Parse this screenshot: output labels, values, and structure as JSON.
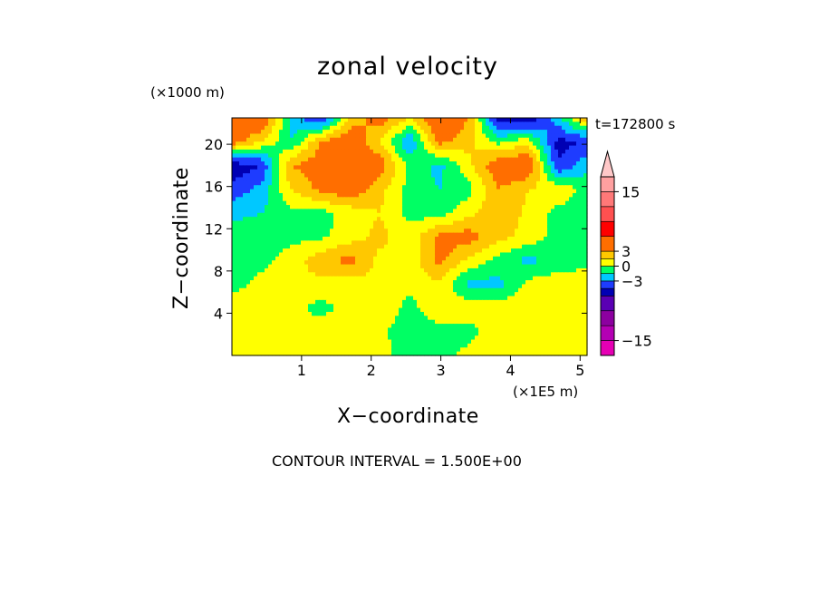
{
  "chart_data": {
    "type": "heatmap",
    "title": "zonal velocity",
    "xlabel": "X−coordinate",
    "ylabel": "Z−coordinate",
    "x_unit_label": "(×1E5 m)",
    "y_unit_label": "(×1000 m)",
    "time_label": "t=172800 s",
    "footer": "CONTOUR INTERVAL = 1.500E+00",
    "xlim": [
      0,
      5.1
    ],
    "ylim": [
      0,
      22.5
    ],
    "x_ticks": [
      {
        "value": 1,
        "label": "1"
      },
      {
        "value": 2,
        "label": "2"
      },
      {
        "value": 3,
        "label": "3"
      },
      {
        "value": 4,
        "label": "4"
      },
      {
        "value": 5,
        "label": "5"
      }
    ],
    "y_ticks": [
      {
        "value": 4,
        "label": "4"
      },
      {
        "value": 8,
        "label": "8"
      },
      {
        "value": 12,
        "label": "12"
      },
      {
        "value": 16,
        "label": "16"
      },
      {
        "value": 20,
        "label": "20"
      }
    ],
    "contour_interval": 1.5,
    "colorbar": {
      "range": [
        -18,
        18
      ],
      "has_upper_arrow": true,
      "tick_labels": [
        {
          "value": 15,
          "label": "15"
        },
        {
          "value": 3,
          "label": "3"
        },
        {
          "value": 0,
          "label": "0"
        },
        {
          "value": -3,
          "label": "−3"
        },
        {
          "value": -15,
          "label": "−15"
        }
      ],
      "levels": [
        {
          "lo": -18,
          "hi": -15,
          "color": "#e600b4"
        },
        {
          "lo": -15,
          "hi": -12,
          "color": "#b400b4"
        },
        {
          "lo": -12,
          "hi": -9,
          "color": "#8c00a0"
        },
        {
          "lo": -9,
          "hi": -6,
          "color": "#5a00b4"
        },
        {
          "lo": -6,
          "hi": -4.5,
          "color": "#0000b4"
        },
        {
          "lo": -4.5,
          "hi": -3,
          "color": "#1e3cff"
        },
        {
          "lo": -3,
          "hi": -1.5,
          "color": "#00c8ff"
        },
        {
          "lo": -1.5,
          "hi": 0,
          "color": "#00ff64"
        },
        {
          "lo": 0,
          "hi": 1.5,
          "color": "#ffff00"
        },
        {
          "lo": 1.5,
          "hi": 3,
          "color": "#ffc800"
        },
        {
          "lo": 3,
          "hi": 6,
          "color": "#ff6e00"
        },
        {
          "lo": 6,
          "hi": 9,
          "color": "#ff0000"
        },
        {
          "lo": 9,
          "hi": 12,
          "color": "#ff5050"
        },
        {
          "lo": 12,
          "hi": 15,
          "color": "#ff7878"
        },
        {
          "lo": 15,
          "hi": 18,
          "color": "#ffa0a0"
        },
        {
          "lo": 18,
          "hi": 99,
          "color": "#ffc8c8"
        }
      ]
    },
    "grid_x": [
      0.0,
      0.43,
      0.85,
      1.28,
      1.7,
      2.13,
      2.55,
      2.98,
      3.4,
      3.83,
      4.25,
      4.68,
      5.1
    ],
    "grid_z": [
      0.0,
      2.25,
      4.5,
      6.75,
      9.0,
      11.25,
      13.5,
      15.75,
      18.0,
      20.25,
      22.5
    ],
    "values": [
      [
        0.5,
        1.0,
        0.5,
        1.0,
        0.8,
        0.5,
        -0.6,
        -0.5,
        0.5,
        1.0,
        0.5,
        0.8,
        0.5
      ],
      [
        1.0,
        0.8,
        0.3,
        0.8,
        1.2,
        0.3,
        -0.8,
        -0.5,
        -0.6,
        1.0,
        0.8,
        0.6,
        1.0
      ],
      [
        0.6,
        1.0,
        0.5,
        -0.5,
        0.5,
        1.0,
        -0.5,
        1.0,
        1.0,
        0.8,
        1.0,
        1.0,
        0.8
      ],
      [
        -0.5,
        0.5,
        1.0,
        1.0,
        0.8,
        1.2,
        0.5,
        1.2,
        -2.0,
        -2.0,
        0.5,
        1.0,
        1.0
      ],
      [
        -0.8,
        -0.5,
        0.8,
        2.5,
        3.5,
        1.0,
        0.5,
        3.5,
        1.2,
        -0.5,
        -2.0,
        -1.0,
        -0.5
      ],
      [
        -0.5,
        -0.8,
        -0.5,
        -0.3,
        0.8,
        2.0,
        0.6,
        3.5,
        3.8,
        2.0,
        1.0,
        -0.5,
        -0.6
      ],
      [
        -2.0,
        -1.5,
        -0.5,
        -0.5,
        0.5,
        1.5,
        -0.5,
        -0.8,
        1.0,
        2.5,
        1.2,
        -0.5,
        -0.5
      ],
      [
        -4.0,
        -2.5,
        1.5,
        3.5,
        4.5,
        2.0,
        -0.5,
        -1.5,
        -0.5,
        3.0,
        1.5,
        1.0,
        -0.5
      ],
      [
        -5.5,
        -4.5,
        3.0,
        4.0,
        5.0,
        4.0,
        -0.5,
        -2.0,
        1.0,
        4.5,
        5.0,
        -4.5,
        -2.0
      ],
      [
        4.0,
        1.5,
        -1.5,
        3.0,
        4.5,
        1.5,
        -3.0,
        3.5,
        2.0,
        -0.5,
        1.0,
        -5.0,
        -4.5
      ],
      [
        4.5,
        5.0,
        -2.0,
        -5.0,
        2.0,
        4.0,
        1.5,
        5.5,
        3.0,
        -5.5,
        -6.0,
        -2.0,
        3.0
      ]
    ]
  }
}
